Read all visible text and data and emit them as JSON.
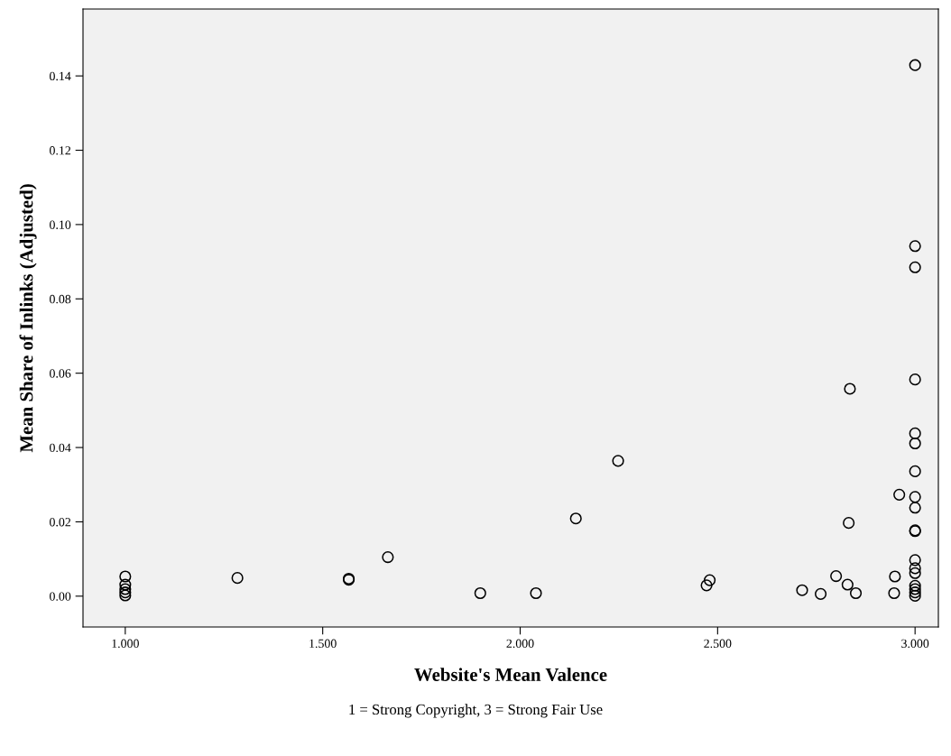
{
  "chart_data": {
    "type": "scatter",
    "xlabel": "Website's Mean Valence",
    "ylabel": "Mean Share of Inlinks (Adjusted)",
    "annotations": [
      "1 = Strong Copyright, 3 = Strong Fair Use"
    ],
    "x": [
      1.0,
      1.0,
      1.0,
      1.0,
      1.0,
      1.284,
      1.566,
      1.566,
      1.665,
      1.899,
      2.04,
      2.141,
      2.248,
      2.472,
      2.48,
      2.714,
      2.761,
      2.8,
      2.829,
      2.85,
      2.832,
      2.835,
      2.947,
      2.949,
      2.96,
      3.0,
      3.0,
      3.0,
      3.0,
      3.0,
      3.0,
      3.0,
      3.0,
      3.0,
      3.0,
      3.0,
      3.0,
      3.0,
      3.0,
      3.0,
      3.0,
      3.0,
      3.0
    ],
    "series": [
      {
        "color": "#000000",
        "values": [
          0.0053,
          0.0031,
          0.0019,
          0.001,
          0.0002,
          0.0049,
          0.0047,
          0.0044,
          0.0105,
          0.0008,
          0.0008,
          0.0209,
          0.0364,
          0.0029,
          0.0043,
          0.0016,
          0.0006,
          0.0054,
          0.0031,
          0.0008,
          0.0197,
          0.0558,
          0.0008,
          0.0053,
          0.0273,
          0.1429,
          0.0942,
          0.0885,
          0.0583,
          0.0438,
          0.0411,
          0.0336,
          0.0267,
          0.0238,
          0.0175,
          0.0097,
          0.0075,
          0.0062,
          0.0028,
          0.0019,
          0.001,
          0.0001,
          0.0177
        ]
      }
    ],
    "xlim": [
      0.893,
      3.059
    ],
    "ylim": [
      -0.0083,
      0.158
    ],
    "xticks": [
      {
        "value": 1.0,
        "label": "1.000"
      },
      {
        "value": 1.5,
        "label": "1.500"
      },
      {
        "value": 2.0,
        "label": "2.000"
      },
      {
        "value": 2.5,
        "label": "2.500"
      },
      {
        "value": 3.0,
        "label": "3.000"
      }
    ],
    "yticks": [
      {
        "value": 0.0,
        "label": "0.00"
      },
      {
        "value": 0.02,
        "label": "0.02"
      },
      {
        "value": 0.04,
        "label": "0.04"
      },
      {
        "value": 0.06,
        "label": "0.06"
      },
      {
        "value": 0.08,
        "label": "0.08"
      },
      {
        "value": 0.1,
        "label": "0.10"
      },
      {
        "value": 0.12,
        "label": "0.12"
      },
      {
        "value": 0.14,
        "label": "0.14"
      }
    ],
    "marker": "circle",
    "grid": false
  }
}
